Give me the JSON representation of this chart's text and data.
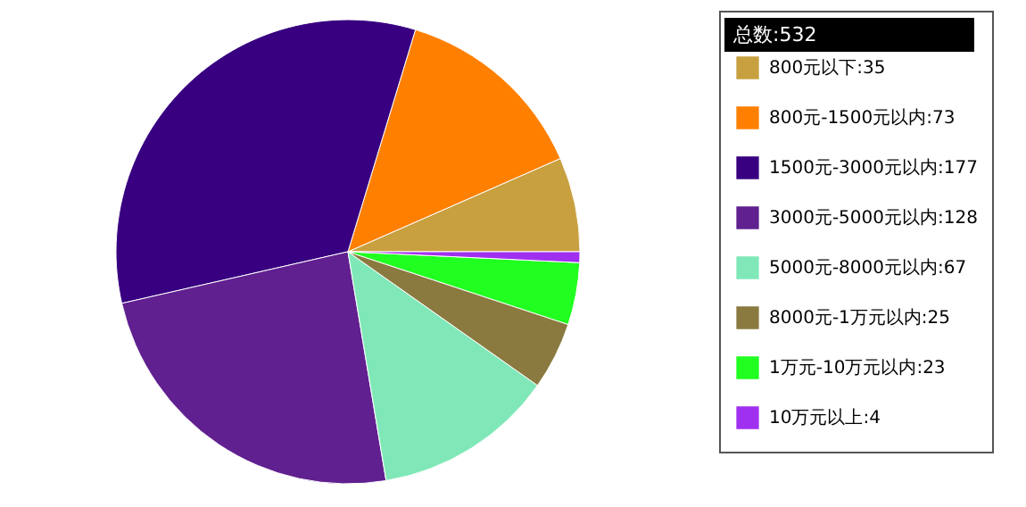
{
  "chart_data": {
    "type": "pie",
    "legend_title": "总数:532",
    "legend": "right",
    "categories": [
      "800元以下:35",
      "800元-1500元以内:73",
      "1500元-3000元以内:177",
      "3000元-5000元以内:128",
      "5000元-8000元以内:67",
      "8000元-1万元以内:25",
      "1万元-10万元以内:23",
      "10万元以上:4"
    ],
    "values": [
      35,
      73,
      177,
      128,
      67,
      25,
      23,
      4
    ],
    "colors": [
      "#c8a040",
      "#ff8000",
      "#380080",
      "#602090",
      "#80e8b8",
      "#8a7a40",
      "#20ff20",
      "#a030f0"
    ]
  }
}
